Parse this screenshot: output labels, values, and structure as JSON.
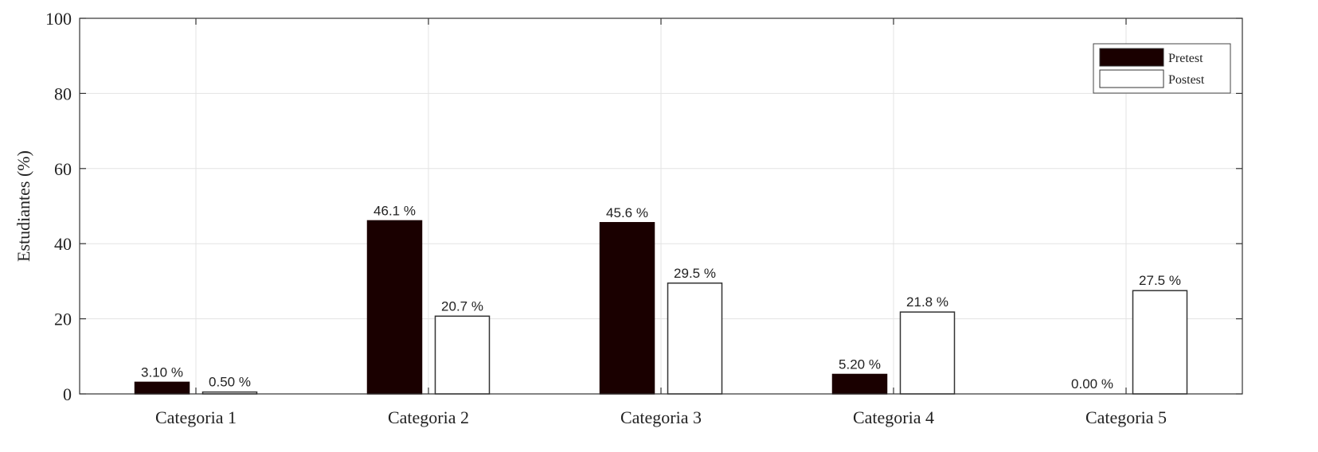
{
  "chart_data": {
    "type": "bar",
    "categories": [
      "Categoria 1",
      "Categoria 2",
      "Categoria 3",
      "Categoria 4",
      "Categoria 5"
    ],
    "series": [
      {
        "name": "Pretest",
        "values": [
          3.1,
          46.1,
          45.6,
          5.2,
          0.0
        ],
        "labels": [
          "3.10 %",
          "46.1 %",
          "45.6 %",
          "5.20 %",
          "0.00 %"
        ],
        "color": "#1a0000"
      },
      {
        "name": "Postest",
        "values": [
          0.5,
          20.7,
          29.5,
          21.8,
          27.5
        ],
        "labels": [
          "0.50 %",
          "20.7 %",
          "29.5 %",
          "21.8 %",
          "27.5 %"
        ],
        "color": "#ffffff"
      }
    ],
    "title": "",
    "xlabel": "",
    "ylabel": "Estudiantes (%)",
    "ylim": [
      0,
      100
    ],
    "yticks": [
      "0",
      "20",
      "40",
      "60",
      "80",
      "100"
    ],
    "grid": true,
    "legend_position": "top-right"
  }
}
